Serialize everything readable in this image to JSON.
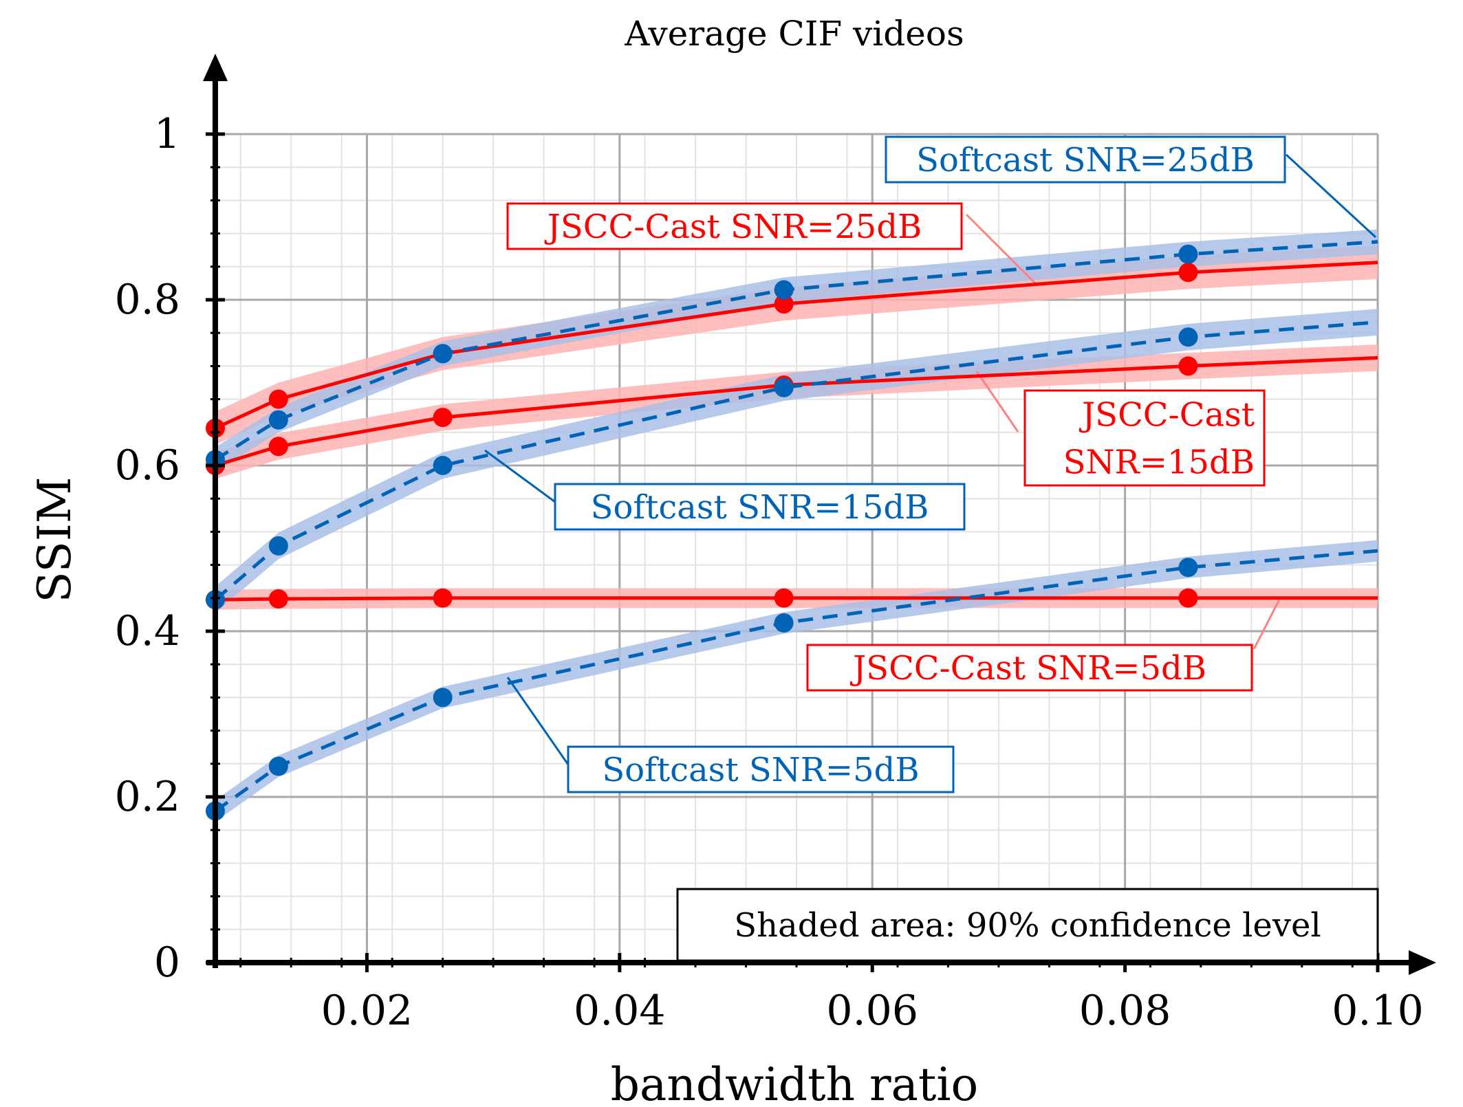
{
  "chart_data": {
    "type": "line",
    "title": "Average CIF videos",
    "xlabel": "bandwidth ratio",
    "ylabel": "SSIM",
    "xlim": [
      0.008,
      0.1
    ],
    "ylim": [
      0,
      1.0
    ],
    "x_ticks": [
      0.02,
      0.04,
      0.06,
      0.08,
      0.1
    ],
    "x_tick_labels": [
      "0.02",
      "0.04",
      "0.06",
      "0.08",
      "0.10"
    ],
    "y_ticks": [
      0,
      0.2,
      0.4,
      0.6,
      0.8,
      1
    ],
    "y_tick_labels": [
      "0",
      "0.2",
      "0.4",
      "0.6",
      "0.8",
      "1"
    ],
    "grid": true,
    "x": [
      0.008,
      0.013,
      0.026,
      0.053,
      0.085,
      0.1
    ],
    "series": [
      {
        "name": "JSCC-Cast SNR=25dB",
        "label_lines": [
          "JSCC-Cast SNR=25dB"
        ],
        "color": "#ff0000",
        "band_color": "#ffb3b3",
        "dashed": false,
        "values": [
          0.645,
          0.68,
          0.735,
          0.795,
          0.833,
          0.845
        ],
        "band": 0.02,
        "markers": [
          true,
          true,
          true,
          true,
          true,
          false
        ]
      },
      {
        "name": "JSCC-Cast SNR=15dB",
        "label_lines": [
          "JSCC-Cast",
          "SNR=15dB"
        ],
        "color": "#ff0000",
        "band_color": "#ffb3b3",
        "dashed": false,
        "values": [
          0.6,
          0.623,
          0.658,
          0.697,
          0.72,
          0.73
        ],
        "band": 0.016,
        "markers": [
          true,
          true,
          true,
          true,
          true,
          false
        ]
      },
      {
        "name": "JSCC-Cast SNR=5dB",
        "label_lines": [
          "JSCC-Cast SNR=5dB"
        ],
        "color": "#ff0000",
        "band_color": "#ffb3b3",
        "dashed": false,
        "values": [
          0.438,
          0.439,
          0.44,
          0.44,
          0.44,
          0.44
        ],
        "band": 0.012,
        "markers": [
          true,
          true,
          true,
          true,
          true,
          false
        ]
      },
      {
        "name": "Softcast SNR=25dB",
        "label_lines": [
          "Softcast SNR=25dB"
        ],
        "color": "#0063b5",
        "band_color": "#a9bfe6",
        "dashed": true,
        "values": [
          0.607,
          0.655,
          0.735,
          0.812,
          0.855,
          0.87
        ],
        "band": 0.015,
        "markers": [
          true,
          true,
          true,
          true,
          true,
          false
        ]
      },
      {
        "name": "Softcast SNR=15dB",
        "label_lines": [
          "Softcast SNR=15dB"
        ],
        "color": "#0063b5",
        "band_color": "#a9bfe6",
        "dashed": true,
        "values": [
          0.438,
          0.503,
          0.6,
          0.694,
          0.755,
          0.773
        ],
        "band": 0.016,
        "markers": [
          true,
          true,
          true,
          true,
          true,
          false
        ]
      },
      {
        "name": "Softcast SNR=5dB",
        "label_lines": [
          "Softcast SNR=5dB"
        ],
        "color": "#0063b5",
        "band_color": "#a9bfe6",
        "dashed": true,
        "values": [
          0.183,
          0.237,
          0.32,
          0.41,
          0.477,
          0.497
        ],
        "band": 0.013,
        "markers": [
          true,
          true,
          true,
          true,
          true,
          false
        ]
      }
    ],
    "annotation": "Shaded area: 90% confidence level"
  }
}
